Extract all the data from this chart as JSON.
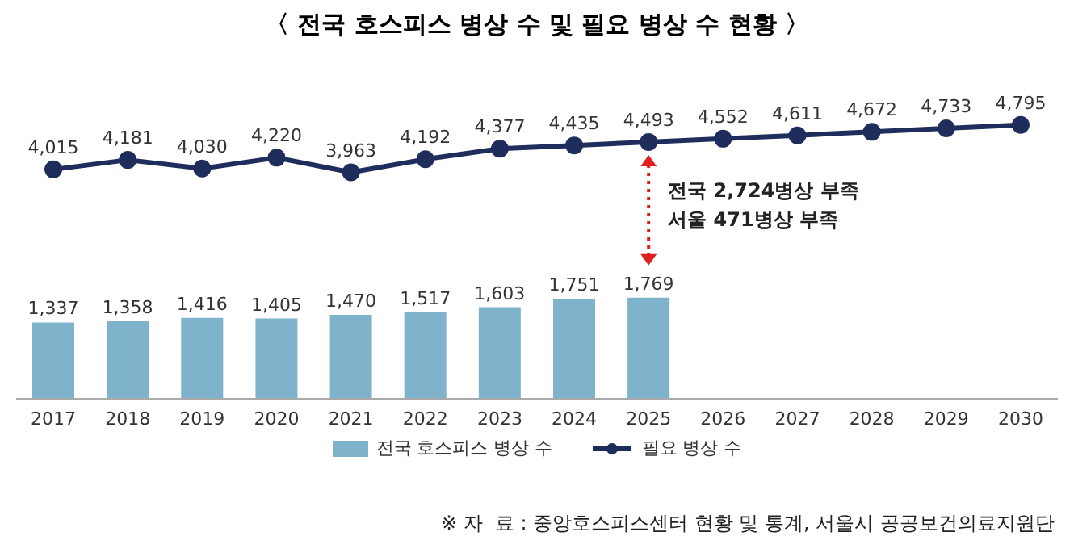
{
  "chart_data": {
    "type": "bar",
    "title": "〈 전국 호스피스 병상 수 및 필요 병상 수 현황 〉",
    "categories": [
      "2017",
      "2018",
      "2019",
      "2020",
      "2021",
      "2022",
      "2023",
      "2024",
      "2025",
      "2026",
      "2027",
      "2028",
      "2029",
      "2030"
    ],
    "series": [
      {
        "name": "전국 호스피스 병상 수",
        "color": "#7fb3cc",
        "values": [
          1337,
          1358,
          1416,
          1405,
          1470,
          1517,
          1603,
          1751,
          1769,
          null,
          null,
          null,
          null,
          null
        ],
        "value_labels": [
          "1,337",
          "1,358",
          "1,416",
          "1,405",
          "1,470",
          "1,517",
          "1,603",
          "1,751",
          "1,769",
          null,
          null,
          null,
          null,
          null
        ]
      },
      {
        "name": "필요 병상 수",
        "type": "line",
        "color": "#1f2d5c",
        "values": [
          4015,
          4181,
          4030,
          4220,
          3963,
          4192,
          4377,
          4435,
          4493,
          4552,
          4611,
          4672,
          4733,
          4795
        ],
        "value_labels": [
          "4,015",
          "4,181",
          "4,030",
          "4,220",
          "3,963",
          "4,192",
          "4,377",
          "4,435",
          "4,493",
          "4,552",
          "4,611",
          "4,672",
          "4,733",
          "4,795"
        ]
      }
    ],
    "tick_labels": "x",
    "legend": "bottom",
    "marker": "circle",
    "line_style": "solid",
    "annotations": [
      "전국 2,724병상 부족",
      "서울 471병상 부족",
      "※ 자  료 : 중앙호스피스센터 현황 및 통계, 서울시 공공보건의료지원단"
    ]
  }
}
